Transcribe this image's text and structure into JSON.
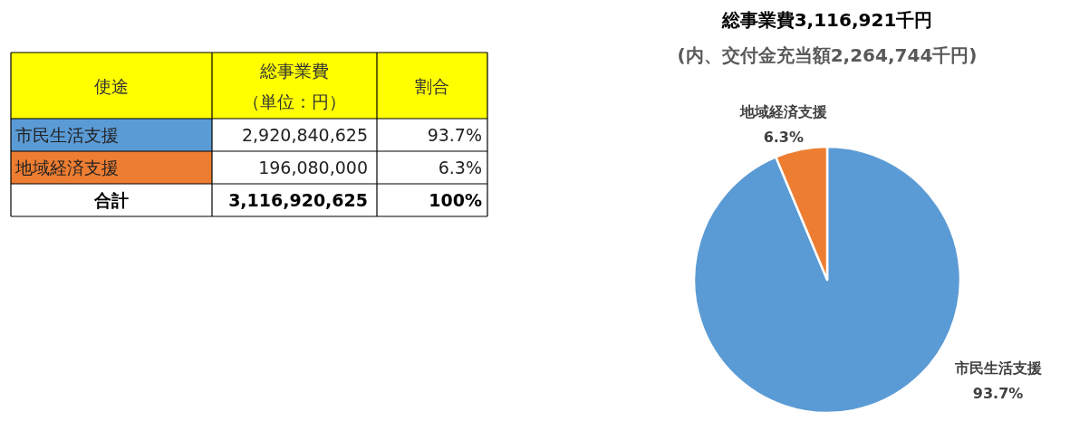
{
  "chart_data": {
    "type": "pie",
    "title": "総事業費3,116,921千円",
    "subtitle": "(内、交付金充当額2,264,744千円)",
    "categories": [
      "市民生活支援",
      "地域経済支援"
    ],
    "values": [
      93.7,
      6.3
    ],
    "colors": [
      "#5b9bd5",
      "#ed7d31"
    ],
    "value_labels": [
      "93.7%",
      "6.3%"
    ],
    "annotations": [
      "使途",
      "総事業費",
      "（単位：円）",
      "割合",
      "2,920,840,625",
      "196,080,000",
      "合計",
      "3,116,920,625",
      "100%"
    ]
  }
}
